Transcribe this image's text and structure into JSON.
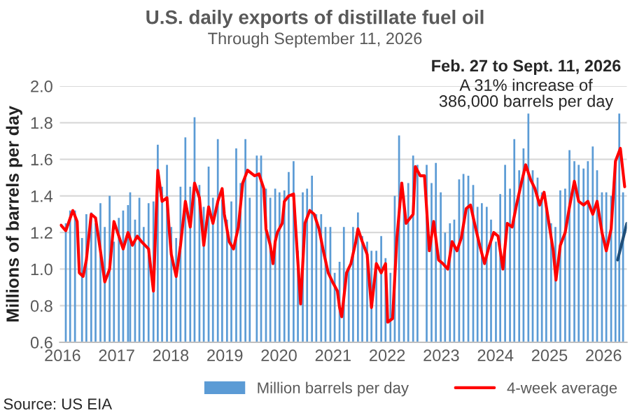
{
  "chart_data": {
    "type": "bar",
    "title": "U.S. daily exports of distillate fuel oil",
    "subtitle": "Through September 11, 2026",
    "ylabel": "Millions of barrels per day",
    "annotations": [
      "Feb. 27 to Sept. 11, 2026",
      "A 31% increase of\n386,000 barrels per day",
      "Source: US EIA"
    ],
    "xlim": [
      2016.45,
      2026.93
    ],
    "xticks": [
      {
        "value": 2016.5,
        "label": "2016"
      },
      {
        "value": 2017.5,
        "label": "2017"
      },
      {
        "value": 2018.5,
        "label": "2018"
      },
      {
        "value": 2019.5,
        "label": "2019"
      },
      {
        "value": 2020.5,
        "label": "2020"
      },
      {
        "value": 2021.5,
        "label": "2021"
      },
      {
        "value": 2022.5,
        "label": "2022"
      },
      {
        "value": 2023.5,
        "label": "2023"
      },
      {
        "value": 2024.5,
        "label": "2024"
      },
      {
        "value": 2025.5,
        "label": "2025"
      },
      {
        "value": 2026.5,
        "label": "2026"
      }
    ],
    "ylim": [
      0.6,
      2.0
    ],
    "yticks": [
      0.6,
      0.8,
      {
        "value": 1,
        "label": "1.0"
      },
      1.2,
      1.4,
      1.6,
      1.8,
      {
        "value": 2,
        "label": "2.0"
      }
    ],
    "grid": "y",
    "legend": "bottom",
    "series": [
      {
        "name": "Million barrels per day",
        "color": "#5b9bd5",
        "x": [
          2016.56,
          2016.64,
          2016.73,
          2016.86,
          2016.94,
          2017.03,
          2017.11,
          2017.2,
          2017.28,
          2017.37,
          2017.45,
          2017.54,
          2017.62,
          2017.71,
          2017.75,
          2017.84,
          2017.92,
          2018.0,
          2018.09,
          2018.18,
          2018.26,
          2018.34,
          2018.43,
          2018.51,
          2018.6,
          2018.68,
          2018.77,
          2018.86,
          2018.94,
          2019.03,
          2019.11,
          2019.2,
          2019.28,
          2019.37,
          2019.45,
          2019.54,
          2019.62,
          2019.71,
          2019.79,
          2019.88,
          2019.96,
          2020.09,
          2020.17,
          2020.26,
          2020.34,
          2020.43,
          2020.51,
          2020.6,
          2020.68,
          2020.77,
          2020.85,
          2020.94,
          2021.02,
          2021.11,
          2021.19,
          2021.28,
          2021.36,
          2021.45,
          2021.53,
          2021.62,
          2021.7,
          2021.79,
          2021.87,
          2021.96,
          2022.04,
          2022.13,
          2022.21,
          2022.3,
          2022.39,
          2022.47,
          2022.56,
          2022.64,
          2022.72,
          2022.81,
          2022.89,
          2022.98,
          2023.06,
          2023.23,
          2023.32,
          2023.4,
          2023.49,
          2023.57,
          2023.66,
          2023.74,
          2023.83,
          2023.91,
          2024.0,
          2024.09,
          2024.17,
          2024.25,
          2024.34,
          2024.42,
          2024.51,
          2024.59,
          2024.68,
          2024.77,
          2024.85,
          2024.94,
          2025.02,
          2025.11,
          2025.19,
          2025.28,
          2025.36,
          2025.44,
          2025.53,
          2025.61,
          2025.7,
          2025.79,
          2025.87,
          2025.96,
          2026.04,
          2026.13,
          2026.21,
          2026.3,
          2026.38,
          2026.47,
          2026.55,
          2026.64,
          2026.72,
          2026.79,
          2026.86
        ],
        "values": [
          1.25,
          1.32,
          1.32,
          1.17,
          1.3,
          1.31,
          1.25,
          1.36,
          1.23,
          1.4,
          1.15,
          1.28,
          1.32,
          1.35,
          1.42,
          1.27,
          1.39,
          1.23,
          1.36,
          1.37,
          1.68,
          1.45,
          1.57,
          1.23,
          1.17,
          1.45,
          1.72,
          1.45,
          1.83,
          1.46,
          1.34,
          1.56,
          1.39,
          1.71,
          1.38,
          1.27,
          1.37,
          1.66,
          1.47,
          1.71,
          1.39,
          1.62,
          1.62,
          1.44,
          1.39,
          1.44,
          1.42,
          1.43,
          1.53,
          1.59,
          1.1,
          1.42,
          1.44,
          1.51,
          1.3,
          1.3,
          1.23,
          1.23,
          0.98,
          1.04,
          1.23,
          1.01,
          1.23,
          1.31,
          1.18,
          1.15,
          1.1,
          1.1,
          1.18,
          1.06,
          0.98,
          1.4,
          1.73,
          1.4,
          1.47,
          1.62,
          1.57,
          1.57,
          1.47,
          1.58,
          1.42,
          1.2,
          1.25,
          1.27,
          1.49,
          1.52,
          1.51,
          1.46,
          1.34,
          1.36,
          1.34,
          1.27,
          1.15,
          1.41,
          1.57,
          1.44,
          1.71,
          1.54,
          1.66,
          1.85,
          1.54,
          1.5,
          1.42,
          1.34,
          1.25,
          1.23,
          1.43,
          1.44,
          1.65,
          1.59,
          1.57,
          1.55,
          1.59,
          1.67,
          1.54,
          1.42,
          1.42,
          1.4,
          1.57,
          1.85,
          1.42
        ]
      },
      {
        "name": "4-week average",
        "type": "line",
        "color": "#ff0000",
        "x": [
          2016.47,
          2016.56,
          2016.69,
          2016.77,
          2016.81,
          2016.88,
          2016.94,
          2017.03,
          2017.11,
          2017.2,
          2017.28,
          2017.37,
          2017.45,
          2017.54,
          2017.62,
          2017.71,
          2017.79,
          2017.88,
          2017.96,
          2018.09,
          2018.18,
          2018.26,
          2018.34,
          2018.43,
          2018.47,
          2018.51,
          2018.6,
          2018.68,
          2018.77,
          2018.86,
          2018.94,
          2019.03,
          2019.11,
          2019.2,
          2019.28,
          2019.37,
          2019.45,
          2019.49,
          2019.58,
          2019.66,
          2019.75,
          2019.83,
          2019.92,
          2020.05,
          2020.13,
          2020.22,
          2020.26,
          2020.34,
          2020.39,
          2020.43,
          2020.47,
          2020.56,
          2020.6,
          2020.68,
          2020.77,
          2020.81,
          2020.9,
          2020.98,
          2021.07,
          2021.15,
          2021.24,
          2021.32,
          2021.41,
          2021.49,
          2021.58,
          2021.62,
          2021.66,
          2021.75,
          2021.83,
          2021.92,
          2021.96,
          2022.04,
          2022.13,
          2022.21,
          2022.3,
          2022.39,
          2022.47,
          2022.51,
          2022.6,
          2022.68,
          2022.77,
          2022.85,
          2022.98,
          2023.02,
          2023.11,
          2023.19,
          2023.28,
          2023.36,
          2023.45,
          2023.53,
          2023.62,
          2023.7,
          2023.79,
          2023.87,
          2023.96,
          2024.04,
          2024.13,
          2024.21,
          2024.3,
          2024.38,
          2024.47,
          2024.55,
          2024.64,
          2024.72,
          2024.81,
          2024.89,
          2024.98,
          2025.06,
          2025.15,
          2025.23,
          2025.32,
          2025.4,
          2025.49,
          2025.57,
          2025.62,
          2025.7,
          2025.79,
          2025.87,
          2025.96,
          2026.04,
          2026.13,
          2026.21,
          2026.3,
          2026.38,
          2026.47,
          2026.55,
          2026.64,
          2026.72,
          2026.81,
          2026.89
        ],
        "values": [
          1.24,
          1.21,
          1.32,
          1.26,
          0.98,
          0.96,
          1.05,
          1.3,
          1.28,
          1.1,
          0.93,
          1.0,
          1.26,
          1.18,
          1.11,
          1.2,
          1.13,
          1.18,
          1.15,
          1.11,
          0.88,
          1.54,
          1.37,
          1.39,
          1.22,
          1.08,
          0.96,
          1.13,
          1.37,
          1.23,
          1.47,
          1.39,
          1.13,
          1.34,
          1.25,
          1.37,
          1.44,
          1.3,
          1.15,
          1.11,
          1.23,
          1.47,
          1.54,
          1.51,
          1.52,
          1.44,
          1.22,
          1.13,
          1.03,
          1.15,
          1.2,
          1.25,
          1.37,
          1.4,
          1.41,
          1.22,
          0.81,
          1.25,
          1.32,
          1.3,
          1.22,
          1.1,
          0.98,
          0.93,
          0.88,
          0.79,
          0.74,
          0.98,
          1.03,
          1.15,
          1.22,
          1.15,
          1.08,
          0.79,
          1.03,
          0.98,
          1.03,
          0.71,
          0.73,
          1.17,
          1.47,
          1.25,
          1.3,
          1.56,
          1.51,
          1.51,
          1.1,
          1.26,
          1.05,
          1.03,
          1.0,
          1.15,
          1.1,
          1.17,
          1.33,
          1.35,
          1.23,
          1.13,
          1.03,
          1.12,
          1.2,
          1.18,
          1.0,
          1.25,
          1.23,
          1.35,
          1.47,
          1.57,
          1.49,
          1.44,
          1.35,
          1.42,
          1.25,
          1.1,
          0.94,
          1.13,
          1.2,
          1.34,
          1.48,
          1.37,
          1.35,
          1.37,
          1.3,
          1.37,
          1.2,
          1.1,
          1.22,
          1.59,
          1.66,
          1.45
        ]
      },
      {
        "type": "line",
        "color": "#1f4e79",
        "x": [
          2026.76,
          2026.93
        ],
        "values": [
          1.05,
          1.25
        ]
      }
    ]
  }
}
